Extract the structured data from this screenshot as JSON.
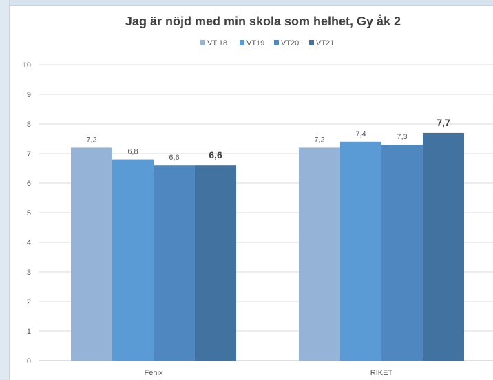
{
  "chart_data": {
    "type": "bar",
    "title": "Jag är nöjd med min skola som helhet, Gy åk 2",
    "categories": [
      "Fenix",
      "RIKET"
    ],
    "series": [
      {
        "name": "VT 18",
        "values": [
          7.2,
          7.2
        ],
        "labels": [
          "7,2",
          "7,2"
        ],
        "color": "#95b3d7"
      },
      {
        "name": "VT19",
        "values": [
          6.8,
          7.4
        ],
        "labels": [
          "6,8",
          "7,4"
        ],
        "color": "#5b9bd5"
      },
      {
        "name": "VT20",
        "values": [
          6.6,
          7.3
        ],
        "labels": [
          "6,6",
          "7,3"
        ],
        "color": "#4f88c1"
      },
      {
        "name": "VT21",
        "values": [
          6.6,
          7.7
        ],
        "labels": [
          "6,6",
          "7,7"
        ],
        "color": "#4172a0",
        "label_bold": true
      }
    ],
    "ylim": [
      0,
      10
    ],
    "yticks": [
      "0",
      "1",
      "2",
      "3",
      "4",
      "5",
      "6",
      "7",
      "8",
      "9",
      "10"
    ],
    "xlabel": "",
    "ylabel": "",
    "grid": true,
    "legend_position": "top-center"
  }
}
